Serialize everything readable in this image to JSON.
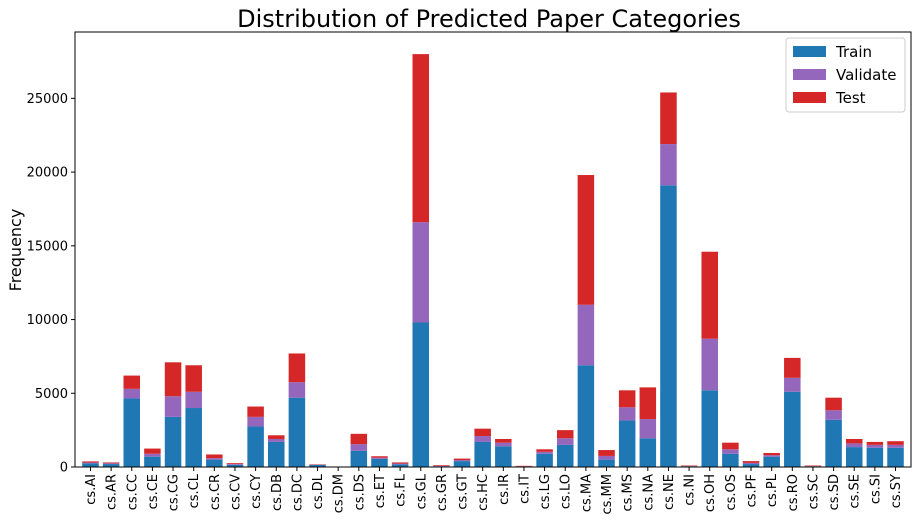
{
  "chart_data": {
    "type": "bar",
    "stacked": true,
    "title": "Distribution of Predicted Paper Categories",
    "xlabel": "",
    "ylabel": "Frequency",
    "ylim": [
      0,
      29500
    ],
    "yticks": [
      0,
      5000,
      10000,
      15000,
      20000,
      25000
    ],
    "grid": false,
    "legend_position": "top-right",
    "categories": [
      "cs.AI",
      "cs.AR",
      "cs.CC",
      "cs.CE",
      "cs.CG",
      "cs.CL",
      "cs.CR",
      "cs.CV",
      "cs.CY",
      "cs.DB",
      "cs.DC",
      "cs.DL",
      "cs.DM",
      "cs.DS",
      "cs.ET",
      "cs.FL",
      "cs.GL",
      "cs.GR",
      "cs.GT",
      "cs.HC",
      "cs.IR",
      "cs.IT",
      "cs.LG",
      "cs.LO",
      "cs.MA",
      "cs.MM",
      "cs.MS",
      "cs.NA",
      "cs.NE",
      "cs.NI",
      "cs.OH",
      "cs.OS",
      "cs.PF",
      "cs.PL",
      "cs.RO",
      "cs.SC",
      "cs.SD",
      "cs.SE",
      "cs.SI",
      "cs.SY"
    ],
    "series": [
      {
        "name": "Train",
        "color": "#1f77b4",
        "values": [
          250,
          200,
          4650,
          700,
          3400,
          4000,
          500,
          150,
          2750,
          1700,
          4700,
          150,
          0,
          1100,
          550,
          180,
          9800,
          50,
          400,
          1700,
          1400,
          50,
          900,
          1500,
          6900,
          500,
          3150,
          1950,
          19100,
          50,
          5200,
          900,
          200,
          700,
          5100,
          50,
          3200,
          1350,
          1300,
          1300
        ]
      },
      {
        "name": "Validate",
        "color": "#9467bd",
        "values": [
          50,
          50,
          650,
          200,
          1400,
          1100,
          100,
          50,
          650,
          200,
          1050,
          0,
          0,
          450,
          80,
          50,
          6800,
          20,
          70,
          400,
          250,
          0,
          130,
          450,
          4100,
          250,
          900,
          1300,
          2800,
          10,
          3500,
          300,
          80,
          100,
          950,
          10,
          650,
          250,
          200,
          200
        ]
      },
      {
        "name": "Test",
        "color": "#d62728",
        "values": [
          80,
          60,
          900,
          350,
          2300,
          1800,
          250,
          60,
          700,
          250,
          1950,
          30,
          0,
          700,
          100,
          80,
          11400,
          50,
          100,
          500,
          250,
          30,
          170,
          550,
          8800,
          400,
          1150,
          2150,
          3500,
          40,
          5900,
          450,
          120,
          150,
          1350,
          40,
          850,
          300,
          200,
          250
        ]
      }
    ]
  }
}
